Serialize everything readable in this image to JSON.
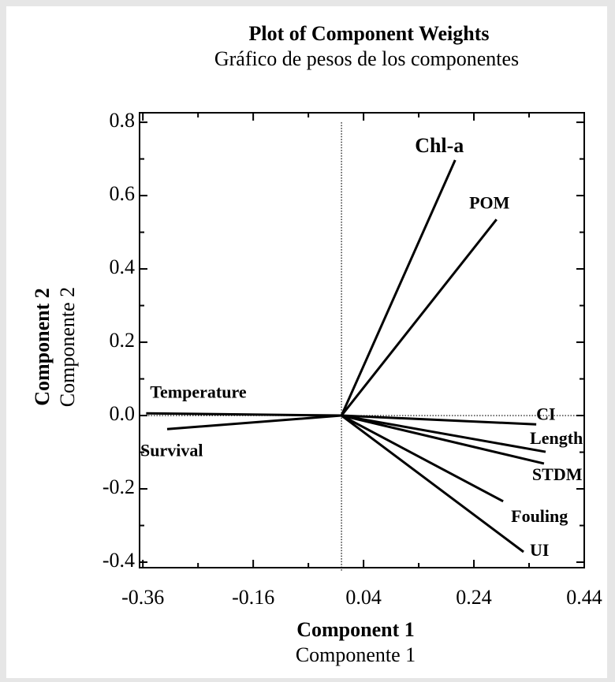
{
  "chart_data": {
    "type": "vector",
    "title": "Plot of Component Weights",
    "subtitle": "Gráfico de pesos de los componentes",
    "x_label": "Component 1",
    "x_label_sub": "Componente 1",
    "y_label": "Component 2",
    "y_label_sub": "Componente 2",
    "color": "#000000",
    "xlim": [
      -0.366,
      0.44
    ],
    "ylim": [
      -0.415,
      0.826
    ],
    "xticks": [
      -0.36,
      -0.16,
      0.04,
      0.24,
      0.44
    ],
    "yticks": [
      {
        "value": 0.8,
        "label": "0.8"
      },
      {
        "value": 0.6,
        "label": "0.6"
      },
      {
        "value": 0.4,
        "label": "0.4"
      },
      {
        "value": 0.2,
        "label": "0.2"
      },
      {
        "value": 0,
        "label": "0.0"
      },
      {
        "value": -0.2,
        "label": "-0.2"
      },
      {
        "value": -0.4,
        "label": "-0.4"
      }
    ],
    "vectors": [
      {
        "name": "Chl-a",
        "x": 0.206,
        "y": 0.697
      },
      {
        "name": "POM",
        "x": 0.281,
        "y": 0.535
      },
      {
        "name": "Temperature",
        "x": -0.354,
        "y": 0.006
      },
      {
        "name": "Survival",
        "x": -0.316,
        "y": -0.037
      },
      {
        "name": "CI",
        "x": 0.353,
        "y": -0.024
      },
      {
        "name": "Length",
        "x": 0.37,
        "y": -0.099
      },
      {
        "name": "STDM",
        "x": 0.367,
        "y": -0.131
      },
      {
        "name": "Fouling",
        "x": 0.293,
        "y": -0.234
      },
      {
        "name": "UI",
        "x": 0.33,
        "y": -0.372
      }
    ]
  }
}
